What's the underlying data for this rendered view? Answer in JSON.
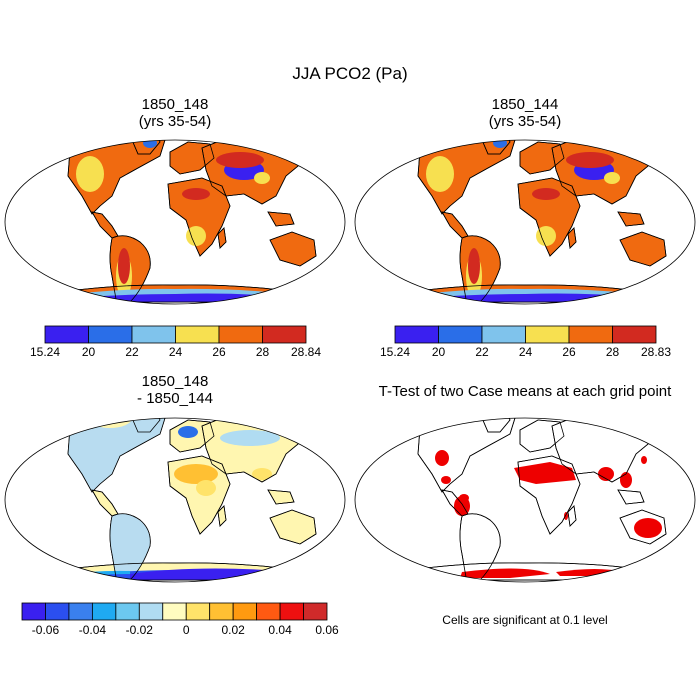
{
  "main_title": "JJA PCO2 (Pa)",
  "panels": [
    {
      "title_line1": "1850_148",
      "title_line2": "(yrs 35-54)"
    },
    {
      "title_line1": "1850_144",
      "title_line2": "(yrs 35-54)"
    },
    {
      "title_line1": "1850_148",
      "title_line2": "- 1850_144"
    },
    {
      "title_line1": "T-Test of two Case means at each grid point",
      "title_line2": ""
    }
  ],
  "significance_note": "Cells are significant at 0.1 level",
  "colors": {
    "ttest_fill": "#ee0000",
    "ocean": "#ffffff",
    "coast": "#000000"
  },
  "chart_data": [
    {
      "type": "heatmap",
      "title": "1850_148 (yrs 35-54)",
      "projection": "Robinson",
      "colorbar": {
        "colors": [
          "#3a20f0",
          "#2a6ee8",
          "#7fc3ec",
          "#f7e050",
          "#f06a10",
          "#d22a20"
        ],
        "ticks": [
          "15.24",
          "20",
          "22",
          "24",
          "26",
          "28",
          "28.84"
        ]
      }
    },
    {
      "type": "heatmap",
      "title": "1850_144 (yrs 35-54)",
      "projection": "Robinson",
      "colorbar": {
        "colors": [
          "#3a20f0",
          "#2a6ee8",
          "#7fc3ec",
          "#f7e050",
          "#f06a10",
          "#d22a20"
        ],
        "ticks": [
          "15.24",
          "20",
          "22",
          "24",
          "26",
          "28",
          "28.83"
        ]
      }
    },
    {
      "type": "heatmap",
      "title": "1850_148 - 1850_144",
      "projection": "Robinson",
      "colorbar": {
        "colors": [
          "#3a20f0",
          "#2b4ff0",
          "#3a80ee",
          "#1faaf2",
          "#6cc8f0",
          "#b0dcf2",
          "#fffcc0",
          "#ffe36a",
          "#ffc033",
          "#ff9a10",
          "#ff5a12",
          "#ee1010",
          "#d02a2a"
        ],
        "ticks": [
          "-0.06",
          "-0.04",
          "-0.02",
          "0",
          "0.02",
          "0.04",
          "0.06"
        ]
      }
    },
    {
      "type": "heatmap",
      "title": "T-Test of two Case means at each grid point",
      "projection": "Robinson",
      "note": "Cells are significant at 0.1 level"
    }
  ]
}
